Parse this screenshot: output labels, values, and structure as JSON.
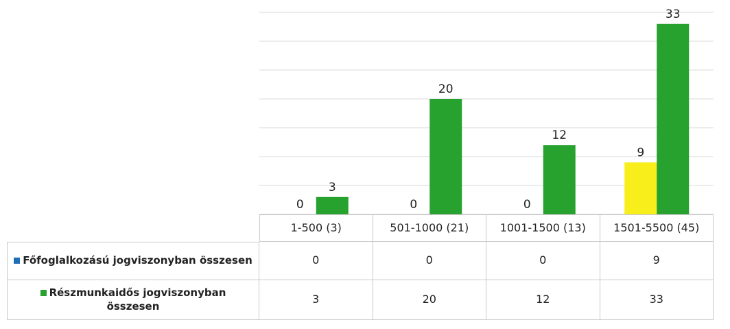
{
  "chart_data": {
    "type": "bar",
    "categories": [
      "1-500 (3)",
      "501-1000 (21)",
      "1001-1500 (13)",
      "1501-5500 (45)"
    ],
    "series": [
      {
        "name": "Főfoglalkozású  jogviszonyban összesen",
        "color": "#1f6fb5",
        "bar_colors": [
          "#1f6fb5",
          "#1f6fb5",
          "#1f6fb5",
          "#f7ee1c"
        ],
        "values": [
          0,
          0,
          0,
          9
        ]
      },
      {
        "name": "Részmunkaidős jogviszonyban összesen",
        "color": "#27a22f",
        "values": [
          3,
          20,
          12,
          33
        ]
      }
    ],
    "ylim": [
      0,
      35
    ],
    "yticks": [
      0,
      5,
      10,
      15,
      20,
      25,
      30,
      35
    ],
    "grid": true
  }
}
